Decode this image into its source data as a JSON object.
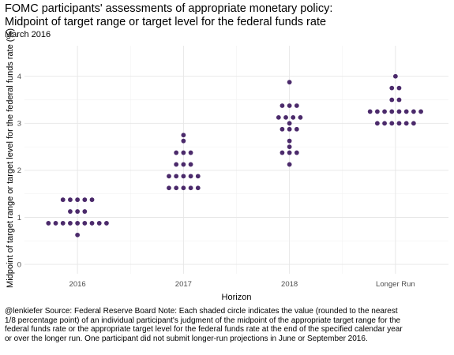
{
  "chart_data": {
    "type": "scatter",
    "title": "FOMC participants' assessments of appropriate monetary policy:\nMidpoint of target range or target level for the federal funds rate",
    "subtitle": "March 2016",
    "xlabel": "Horizon",
    "ylabel": "Midpoint of target range or target level for the federal funds rate (%)",
    "categories": [
      "2016",
      "2017",
      "2018",
      "Longer Run"
    ],
    "yticks": [
      0,
      1,
      2,
      3,
      4
    ],
    "ylim": [
      -0.2,
      4.65
    ],
    "grid": true,
    "point_color": "#4b2a6b",
    "series": [
      {
        "category": "2016",
        "values": [
          0.625,
          0.875,
          0.875,
          0.875,
          0.875,
          0.875,
          0.875,
          0.875,
          0.875,
          0.875,
          1.125,
          1.125,
          1.125,
          1.375,
          1.375,
          1.375,
          1.375,
          1.375
        ]
      },
      {
        "category": "2017",
        "values": [
          1.625,
          1.625,
          1.625,
          1.625,
          1.625,
          1.875,
          1.875,
          1.875,
          1.875,
          1.875,
          2.125,
          2.125,
          2.125,
          2.375,
          2.375,
          2.375,
          2.625,
          2.75
        ]
      },
      {
        "category": "2018",
        "values": [
          2.125,
          2.375,
          2.375,
          2.375,
          2.5,
          2.625,
          2.875,
          2.875,
          2.875,
          3.0,
          3.125,
          3.125,
          3.125,
          3.125,
          3.375,
          3.375,
          3.375,
          3.875
        ]
      },
      {
        "category": "Longer Run",
        "values": [
          3.0,
          3.0,
          3.0,
          3.0,
          3.0,
          3.0,
          3.25,
          3.25,
          3.25,
          3.25,
          3.25,
          3.25,
          3.25,
          3.25,
          3.5,
          3.5,
          3.75,
          3.75,
          4.0
        ]
      }
    ]
  },
  "caption": "@lenkiefer Source: Federal Reserve Board Note: Each shaded circle indicates the value (rounded to the nearest 1/8 percentage point) of an individual participant's judgment of the midpoint of the appropriate target range for the federal funds rate or the appropriate target level for the federal funds rate at the end of the specified calendar year or over the longer run. One participant did not submit longer-run projections in June or September 2016."
}
